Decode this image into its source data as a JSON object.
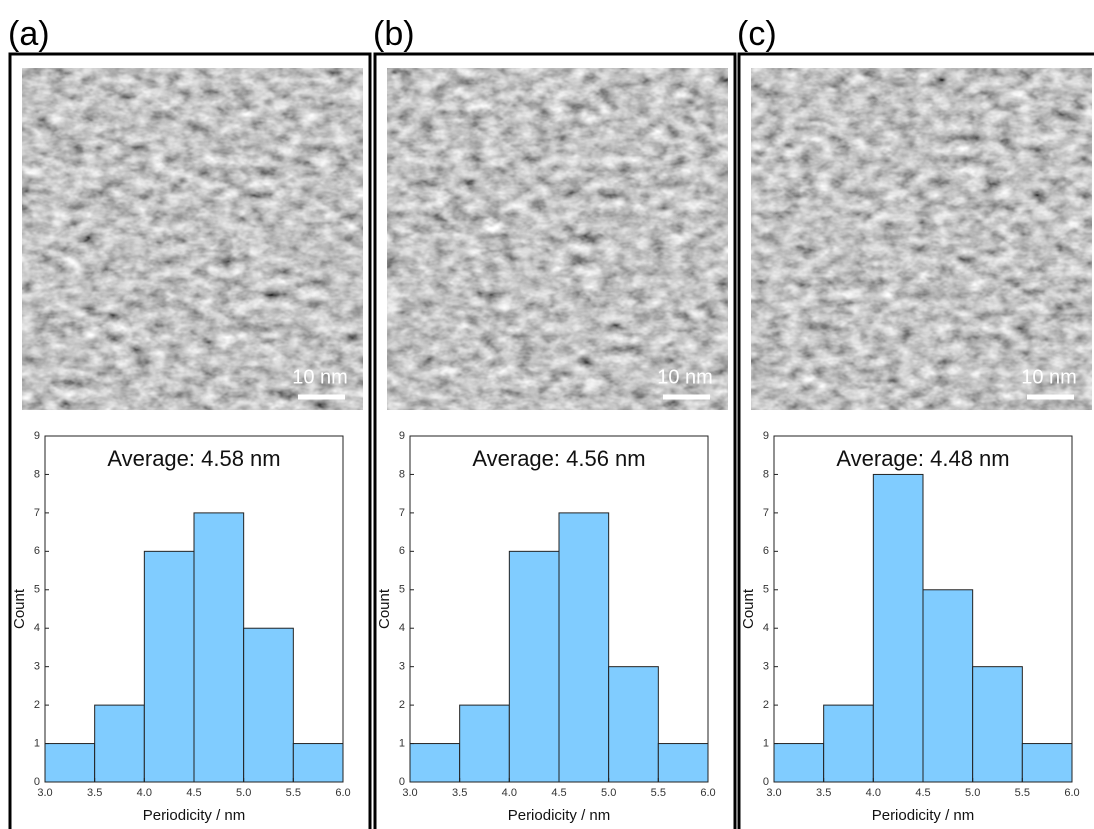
{
  "chart_data": [
    {
      "type": "histogram",
      "panel_label": "(a)",
      "scale_bar_label": "10 nm",
      "annotation": "Average: 4.58 nm",
      "x_label": "Periodicity / nm",
      "y_label": "Count",
      "color": "#80ccff",
      "bins": [
        3.0,
        3.5,
        4.0,
        4.5,
        5.0,
        5.5,
        6.0
      ],
      "values": [
        1,
        2,
        6,
        7,
        4,
        1
      ],
      "xlim": [
        3,
        6
      ],
      "ylim": [
        0,
        9
      ],
      "xticks": [
        {
          "value": 3,
          "label": "3.0"
        },
        {
          "value": 3.5,
          "label": "3.5"
        },
        {
          "value": 4,
          "label": "4.0"
        },
        {
          "value": 4.5,
          "label": "4.5"
        },
        {
          "value": 5,
          "label": "5.0"
        },
        {
          "value": 5.5,
          "label": "5.5"
        },
        {
          "value": 6,
          "label": "6.0"
        }
      ],
      "yticks": [
        0,
        1,
        2,
        3,
        4,
        5,
        6,
        7,
        8,
        9
      ]
    },
    {
      "type": "histogram",
      "panel_label": "(b)",
      "scale_bar_label": "10 nm",
      "annotation": "Average: 4.56 nm",
      "x_label": "Periodicity / nm",
      "y_label": "Count",
      "color": "#80ccff",
      "bins": [
        3.0,
        3.5,
        4.0,
        4.5,
        5.0,
        5.5,
        6.0
      ],
      "values": [
        1,
        2,
        6,
        7,
        3,
        1
      ],
      "xlim": [
        3,
        6
      ],
      "ylim": [
        0,
        9
      ],
      "xticks": [
        {
          "value": 3,
          "label": "3.0"
        },
        {
          "value": 3.5,
          "label": "3.5"
        },
        {
          "value": 4,
          "label": "4.0"
        },
        {
          "value": 4.5,
          "label": "4.5"
        },
        {
          "value": 5,
          "label": "5.0"
        },
        {
          "value": 5.5,
          "label": "5.5"
        },
        {
          "value": 6,
          "label": "6.0"
        }
      ],
      "yticks": [
        0,
        1,
        2,
        3,
        4,
        5,
        6,
        7,
        8,
        9
      ]
    },
    {
      "type": "histogram",
      "panel_label": "(c)",
      "scale_bar_label": "10 nm",
      "annotation": "Average: 4.48 nm",
      "x_label": "Periodicity / nm",
      "y_label": "Count",
      "color": "#80ccff",
      "bins": [
        3.0,
        3.5,
        4.0,
        4.5,
        5.0,
        5.5,
        6.0
      ],
      "values": [
        1,
        2,
        8,
        5,
        3,
        1
      ],
      "xlim": [
        3,
        6
      ],
      "ylim": [
        0,
        9
      ],
      "xticks": [
        {
          "value": 3,
          "label": "3.0"
        },
        {
          "value": 3.5,
          "label": "3.5"
        },
        {
          "value": 4,
          "label": "4.0"
        },
        {
          "value": 4.5,
          "label": "4.5"
        },
        {
          "value": 5,
          "label": "5.0"
        },
        {
          "value": 5.5,
          "label": "5.5"
        },
        {
          "value": 6,
          "label": "6.0"
        }
      ],
      "yticks": [
        0,
        1,
        2,
        3,
        4,
        5,
        6,
        7,
        8,
        9
      ]
    }
  ]
}
